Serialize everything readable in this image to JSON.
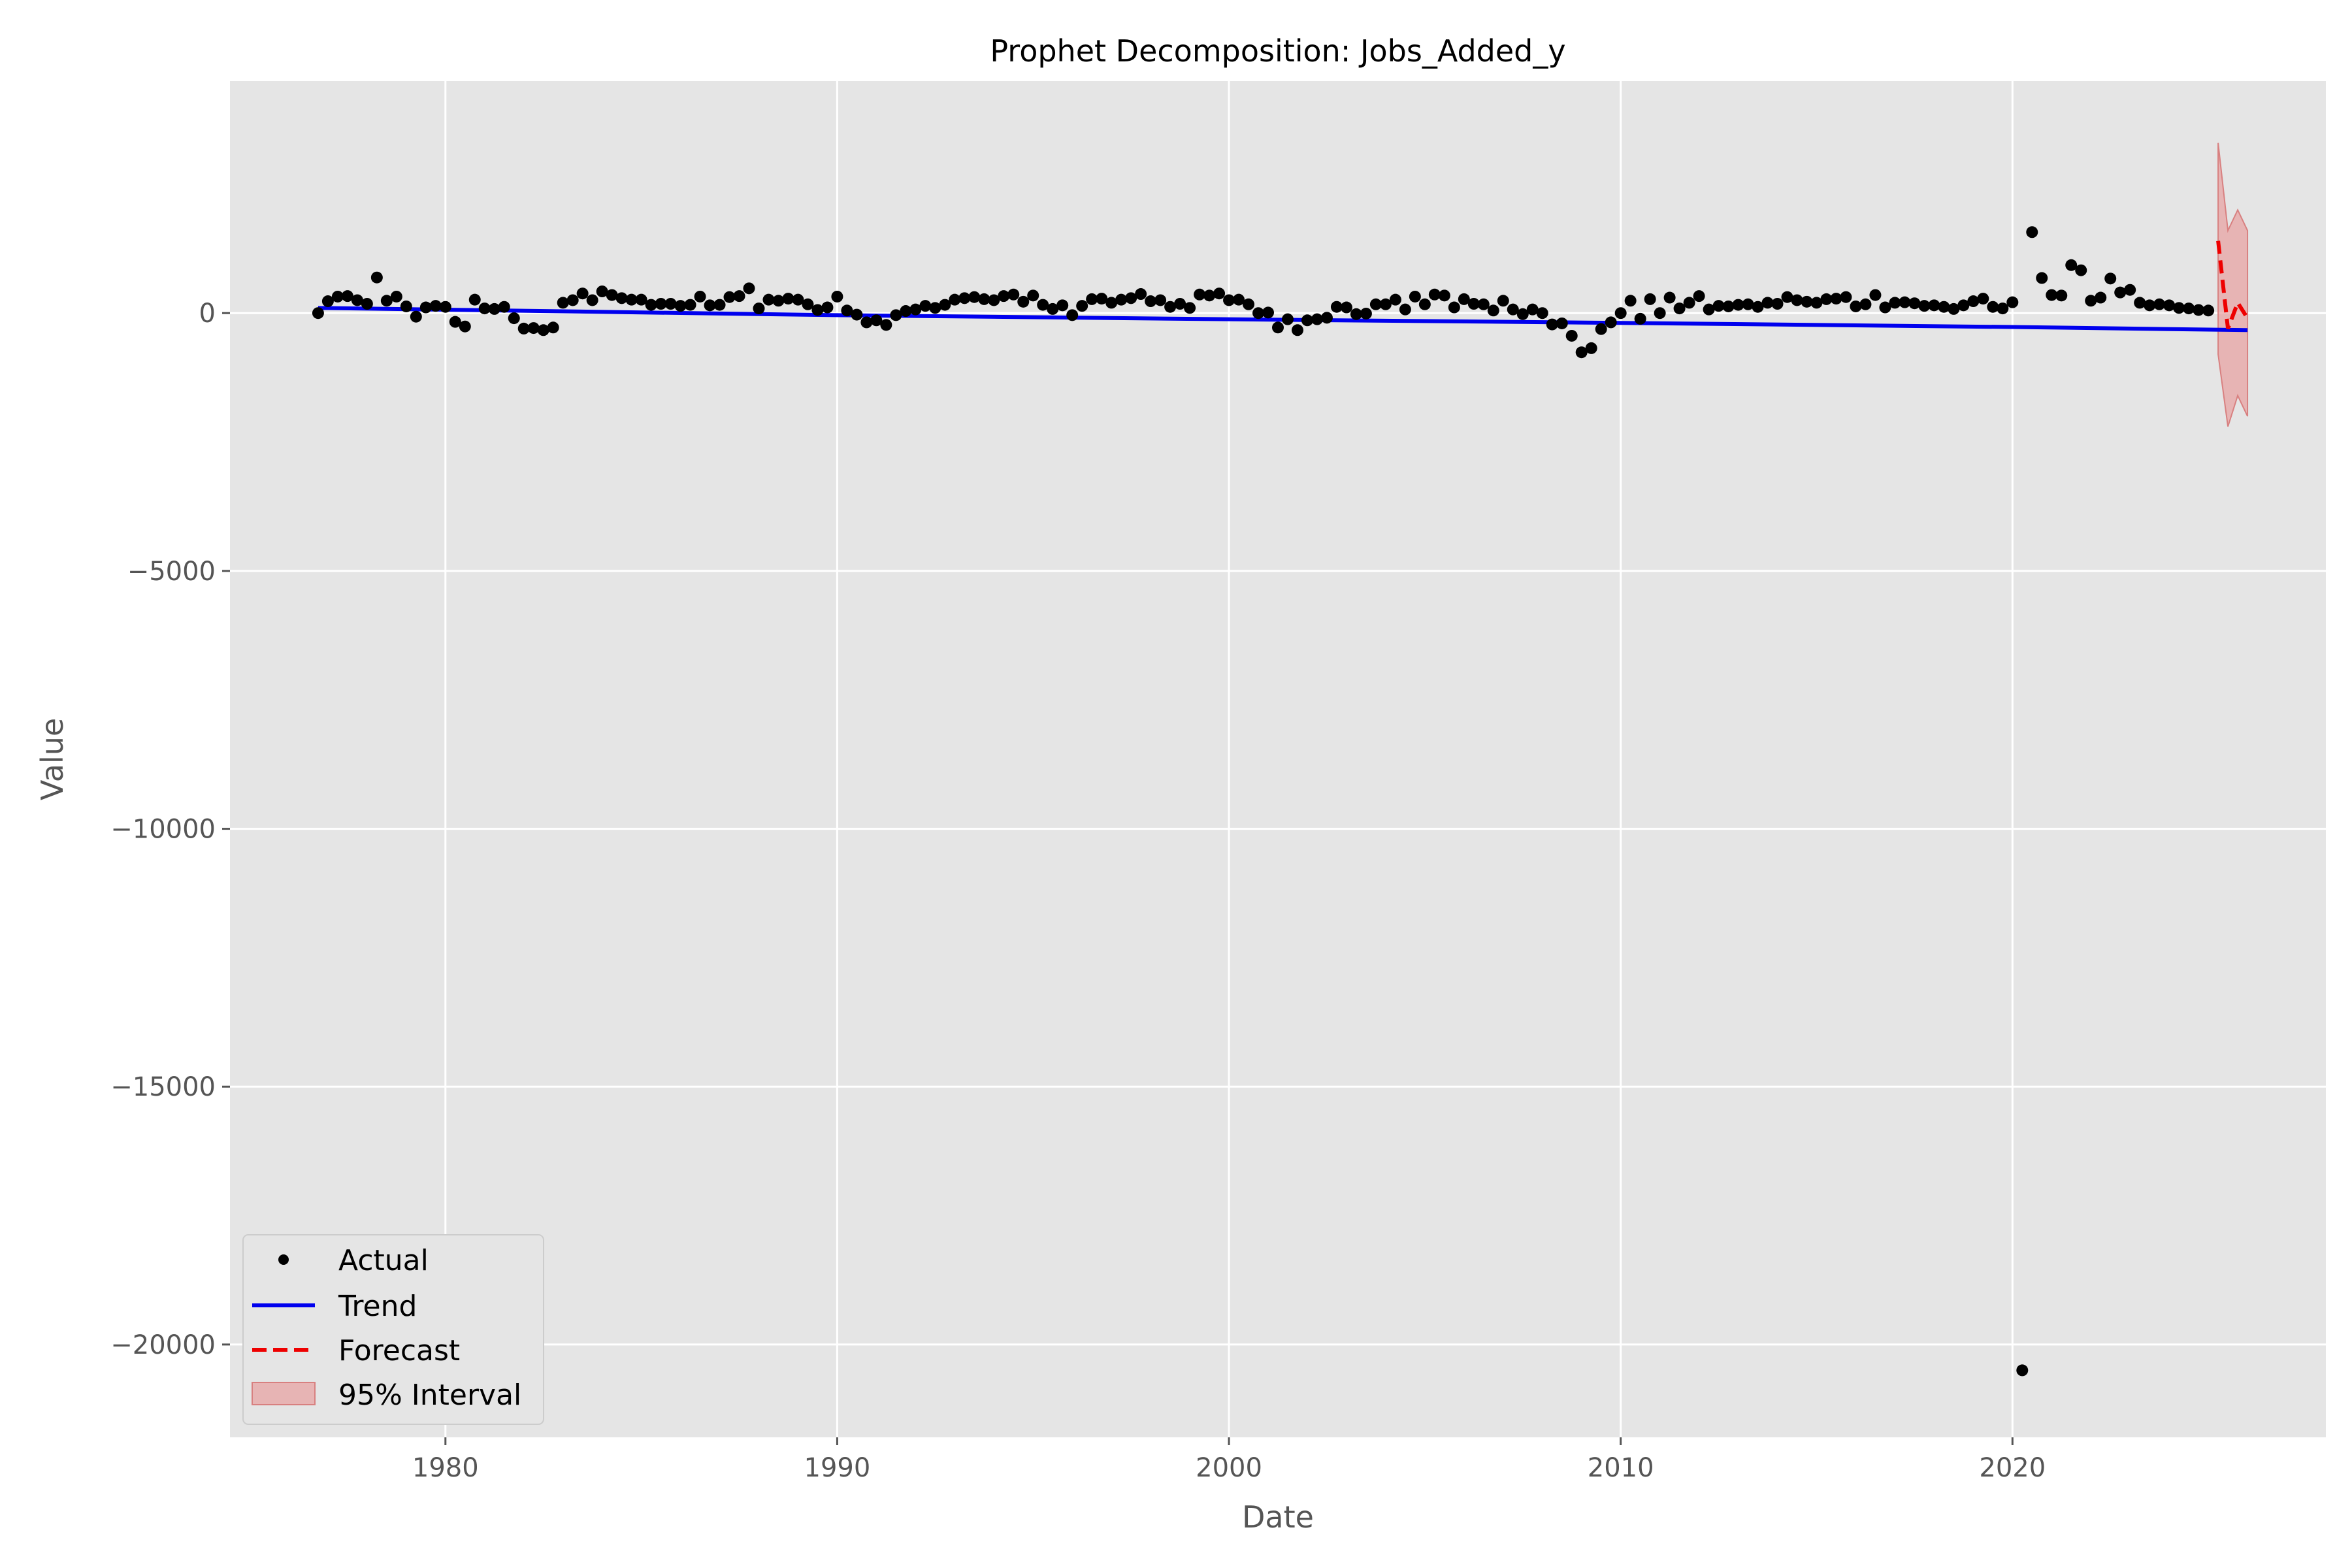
{
  "chart_data": {
    "type": "scatter",
    "title": "Prophet Decomposition: Jobs_Added_y",
    "xlabel": "Date",
    "ylabel": "Value",
    "xlim": [
      1974.5,
      2028.0
    ],
    "ylim": [
      -21800,
      4500
    ],
    "x_ticks": [
      1980,
      1990,
      2000,
      2010,
      2020
    ],
    "x_tick_labels": [
      "1980",
      "1990",
      "2000",
      "2010",
      "2020"
    ],
    "y_ticks": [
      0,
      -5000,
      -10000,
      -15000,
      -20000
    ],
    "y_tick_labels": [
      "0",
      "−5000",
      "−10000",
      "−15000",
      "−20000"
    ],
    "grid": true,
    "legend_position": "lower-left",
    "series": [
      {
        "name": "Actual",
        "kind": "scatter",
        "color": "#000000",
        "x": [
          1976.75,
          1977.0,
          1977.25,
          1977.5,
          1977.75,
          1978.0,
          1978.25,
          1978.5,
          1978.75,
          1979.0,
          1979.25,
          1979.5,
          1979.75,
          1980.0,
          1980.25,
          1980.5,
          1980.75,
          1981.0,
          1981.25,
          1981.5,
          1981.75,
          1982.0,
          1982.25,
          1982.5,
          1982.75,
          1983.0,
          1983.25,
          1983.5,
          1983.75,
          1984.0,
          1984.25,
          1984.5,
          1984.75,
          1985.0,
          1985.25,
          1985.5,
          1985.75,
          1986.0,
          1986.25,
          1986.5,
          1986.75,
          1987.0,
          1987.25,
          1987.5,
          1987.75,
          1988.0,
          1988.25,
          1988.5,
          1988.75,
          1989.0,
          1989.25,
          1989.5,
          1989.75,
          1990.0,
          1990.25,
          1990.5,
          1990.75,
          1991.0,
          1991.25,
          1991.5,
          1991.75,
          1992.0,
          1992.25,
          1992.5,
          1992.75,
          1993.0,
          1993.25,
          1993.5,
          1993.75,
          1994.0,
          1994.25,
          1994.5,
          1994.75,
          1995.0,
          1995.25,
          1995.5,
          1995.75,
          1996.0,
          1996.25,
          1996.5,
          1996.75,
          1997.0,
          1997.25,
          1997.5,
          1997.75,
          1998.0,
          1998.25,
          1998.5,
          1998.75,
          1999.0,
          1999.25,
          1999.5,
          1999.75,
          2000.0,
          2000.25,
          2000.5,
          2000.75,
          2001.0,
          2001.25,
          2001.5,
          2001.75,
          2002.0,
          2002.25,
          2002.5,
          2002.75,
          2003.0,
          2003.25,
          2003.5,
          2003.75,
          2004.0,
          2004.25,
          2004.5,
          2004.75,
          2005.0,
          2005.25,
          2005.5,
          2005.75,
          2006.0,
          2006.25,
          2006.5,
          2006.75,
          2007.0,
          2007.25,
          2007.5,
          2007.75,
          2008.0,
          2008.25,
          2008.5,
          2008.75,
          2009.0,
          2009.25,
          2009.5,
          2009.75,
          2010.0,
          2010.25,
          2010.5,
          2010.75,
          2011.0,
          2011.25,
          2011.5,
          2011.75,
          2012.0,
          2012.25,
          2012.5,
          2012.75,
          2013.0,
          2013.25,
          2013.5,
          2013.75,
          2014.0,
          2014.25,
          2014.5,
          2014.75,
          2015.0,
          2015.25,
          2015.5,
          2015.75,
          2016.0,
          2016.25,
          2016.5,
          2016.75,
          2017.0,
          2017.25,
          2017.5,
          2017.75,
          2018.0,
          2018.25,
          2018.5,
          2018.75,
          2019.0,
          2019.25,
          2019.5,
          2019.75,
          2020.0,
          2020.25,
          2020.5,
          2020.75,
          2021.0,
          2021.25,
          2021.5,
          2021.75,
          2022.0,
          2022.25,
          2022.5,
          2022.75,
          2023.0,
          2023.25,
          2023.5,
          2023.75,
          2024.0,
          2024.25,
          2024.5,
          2024.75,
          2025.0
        ],
        "y": [
          0,
          230,
          320,
          330,
          250,
          180,
          690,
          240,
          320,
          130,
          -70,
          110,
          140,
          120,
          -170,
          -260,
          260,
          90,
          80,
          120,
          -100,
          -300,
          -290,
          -330,
          -280,
          200,
          250,
          380,
          250,
          420,
          350,
          290,
          260,
          260,
          160,
          180,
          180,
          140,
          160,
          320,
          150,
          160,
          310,
          330,
          480,
          90,
          260,
          240,
          280,
          260,
          170,
          60,
          110,
          320,
          50,
          -30,
          -180,
          -140,
          -230,
          -40,
          40,
          70,
          140,
          100,
          160,
          260,
          290,
          310,
          270,
          250,
          330,
          360,
          220,
          340,
          160,
          80,
          150,
          -40,
          140,
          270,
          280,
          200,
          260,
          290,
          370,
          230,
          250,
          120,
          180,
          100,
          360,
          340,
          380,
          250,
          260,
          170,
          0,
          10,
          -280,
          -120,
          -330,
          -140,
          -120,
          -90,
          120,
          110,
          -20,
          -10,
          170,
          170,
          260,
          70,
          320,
          170,
          360,
          340,
          110,
          270,
          180,
          170,
          50,
          240,
          70,
          -20,
          70,
          0,
          -220,
          -200,
          -440,
          -760,
          -680,
          -310,
          -180,
          0,
          240,
          -110,
          270,
          0,
          300,
          90,
          200,
          330,
          70,
          140,
          130,
          160,
          170,
          120,
          200,
          180,
          310,
          250,
          220,
          200,
          270,
          280,
          310,
          130,
          170,
          350,
          110,
          200,
          210,
          190,
          140,
          150,
          120,
          80,
          150,
          230,
          280,
          120,
          90,
          210,
          -20500,
          1570,
          680,
          350,
          340,
          930,
          830,
          240,
          300,
          670,
          400,
          450,
          200,
          150,
          170,
          150,
          100,
          90,
          60,
          50
        ]
      },
      {
        "name": "Trend",
        "kind": "line",
        "color": "#0000ee",
        "x": [
          1976.75,
          1990.0,
          2000.0,
          2010.0,
          2020.0,
          2026.0
        ],
        "y": [
          100,
          -40,
          -120,
          -190,
          -270,
          -330
        ]
      },
      {
        "name": "Forecast",
        "kind": "dashed-line",
        "color": "#ee0000",
        "x": [
          2025.25,
          2025.5,
          2025.75,
          2026.0
        ],
        "y": [
          1400,
          -300,
          200,
          -100
        ]
      },
      {
        "name": "95% Interval",
        "kind": "band",
        "color": "#e8a0a0",
        "x": [
          2025.25,
          2025.5,
          2025.75,
          2026.0
        ],
        "upper": [
          3300,
          1600,
          2000,
          1600
        ],
        "lower": [
          -800,
          -2200,
          -1600,
          -2000
        ]
      }
    ]
  }
}
